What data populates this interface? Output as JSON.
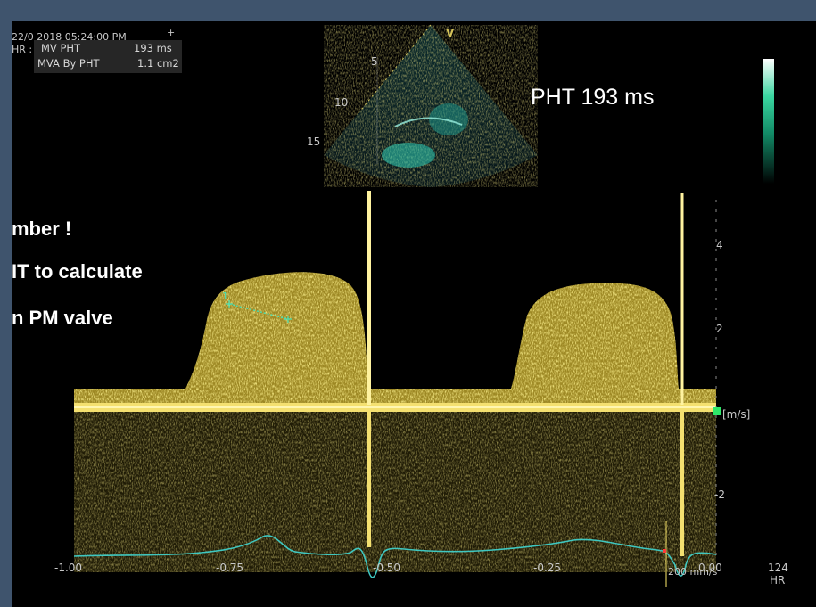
{
  "header": {
    "datetime": "22/0 2018 05:24:00 PM",
    "plus": "+",
    "hr_prefix": "HR : 124"
  },
  "measurement": {
    "row1_label": "MV PHT",
    "row1_value": "193 ms",
    "row2_label": "MVA By PHT",
    "row2_value": "1.1 cm2"
  },
  "sector": {
    "probe_mark": "V",
    "depth_labels": [
      "5",
      "10",
      "15"
    ]
  },
  "annotation": {
    "pht_text": "PHT 193 ms"
  },
  "overlay_note": {
    "line1": "mber !",
    "line2": "IT to calculate",
    "line3": "n PM valve"
  },
  "doppler": {
    "velocity_ticks": [
      "4",
      "2",
      "-2"
    ],
    "velocity_unit": "[m/s]",
    "time_ticks": [
      "-1.00",
      "-0.75",
      "-0.50",
      "-0.25",
      "0.00"
    ],
    "sweep_speed": "200 mm/s",
    "hr_value": "124",
    "hr_label": "HR",
    "caliper_start": "1"
  },
  "colors": {
    "spectrum": "#f2d94a",
    "ecg": "#3fc7c0",
    "caliper": "#47e0b4",
    "colorbar_marker": "#2ee86a"
  }
}
